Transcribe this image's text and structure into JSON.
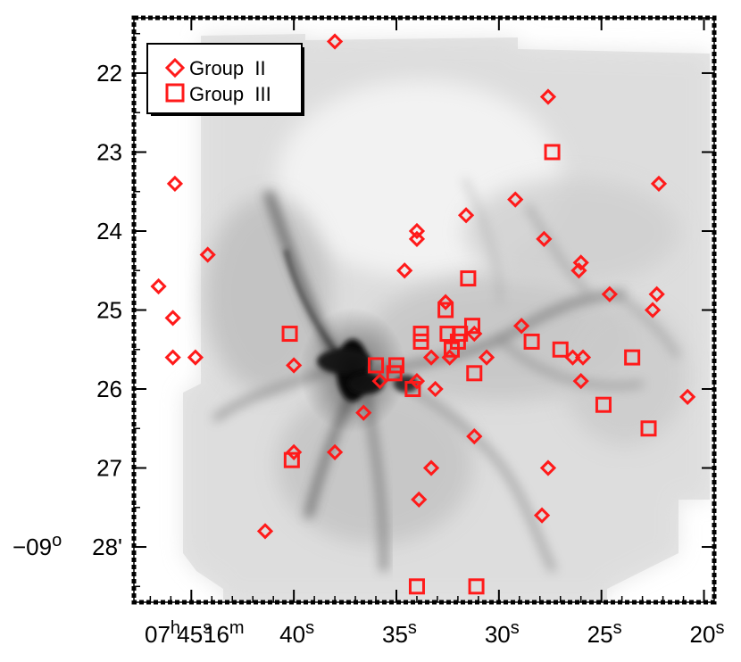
{
  "chart_data": {
    "type": "scatter",
    "background": "grayscale infrared nebula image with dark filamentary structures",
    "xlabel": "",
    "ylabel": "",
    "x_axis": {
      "unit": "seconds of right ascension",
      "range": [
        47.8,
        19.5
      ],
      "ticks": [
        {
          "value": 45,
          "label": "45",
          "sup": "s"
        },
        {
          "value": 40,
          "label": "40",
          "sup": "s"
        },
        {
          "value": 35,
          "label": "35",
          "sup": "s"
        },
        {
          "value": 30,
          "label": "30",
          "sup": "s"
        },
        {
          "value": 25,
          "label": "25",
          "sup": "s"
        },
        {
          "value": 20,
          "label": "20",
          "sup": "s"
        }
      ],
      "prefix": {
        "hours": "07",
        "hours_unit": "h",
        "minutes": "16",
        "minutes_unit": "m"
      }
    },
    "y_axis": {
      "unit": "arcminutes of declination (magnitude)",
      "range": [
        21.3,
        28.7
      ],
      "ticks": [
        {
          "value": 22,
          "label": "22"
        },
        {
          "value": 23,
          "label": "23"
        },
        {
          "value": 24,
          "label": "24"
        },
        {
          "value": 25,
          "label": "25"
        },
        {
          "value": 26,
          "label": "26"
        },
        {
          "value": 27,
          "label": "27"
        },
        {
          "value": 28,
          "label": "28'",
          "prefix": "−09",
          "prefix_sup": "o"
        }
      ]
    },
    "legend": {
      "position": "top-left",
      "entries": [
        {
          "name": "Group  II",
          "marker": "diamond"
        },
        {
          "name": "Group  III",
          "marker": "square"
        }
      ]
    },
    "series": [
      {
        "name": "Group  II",
        "marker": "diamond",
        "color": "#ff1a1a",
        "points": [
          [
            38.0,
            21.6
          ],
          [
            27.6,
            22.3
          ],
          [
            45.8,
            23.4
          ],
          [
            22.2,
            23.4
          ],
          [
            29.2,
            23.6
          ],
          [
            31.6,
            23.8
          ],
          [
            34.0,
            24.0
          ],
          [
            34.0,
            24.1
          ],
          [
            27.8,
            24.1
          ],
          [
            44.2,
            24.3
          ],
          [
            26.0,
            24.4
          ],
          [
            26.1,
            24.5
          ],
          [
            34.6,
            24.5
          ],
          [
            46.6,
            24.7
          ],
          [
            24.6,
            24.8
          ],
          [
            22.3,
            24.8
          ],
          [
            32.6,
            24.9
          ],
          [
            22.5,
            25.0
          ],
          [
            45.9,
            25.1
          ],
          [
            28.9,
            25.2
          ],
          [
            45.9,
            25.6
          ],
          [
            44.8,
            25.6
          ],
          [
            40.0,
            25.7
          ],
          [
            33.3,
            25.6
          ],
          [
            32.4,
            25.6
          ],
          [
            30.6,
            25.6
          ],
          [
            31.2,
            25.3
          ],
          [
            26.4,
            25.6
          ],
          [
            25.9,
            25.6
          ],
          [
            35.8,
            25.9
          ],
          [
            34.0,
            25.9
          ],
          [
            33.1,
            26.0
          ],
          [
            26.0,
            25.9
          ],
          [
            36.6,
            26.3
          ],
          [
            20.8,
            26.1
          ],
          [
            31.2,
            26.6
          ],
          [
            40.0,
            26.8
          ],
          [
            38.0,
            26.8
          ],
          [
            33.3,
            27.0
          ],
          [
            27.6,
            27.0
          ],
          [
            33.9,
            27.4
          ],
          [
            27.9,
            27.6
          ],
          [
            41.4,
            27.8
          ]
        ]
      },
      {
        "name": "Group  III",
        "marker": "square",
        "color": "#ff1a1a",
        "points": [
          [
            27.4,
            23.0
          ],
          [
            31.5,
            24.6
          ],
          [
            32.6,
            25.0
          ],
          [
            32.5,
            25.3
          ],
          [
            31.9,
            25.3
          ],
          [
            31.3,
            25.2
          ],
          [
            33.8,
            25.3
          ],
          [
            33.8,
            25.4
          ],
          [
            32.0,
            25.4
          ],
          [
            32.3,
            25.5
          ],
          [
            28.4,
            25.4
          ],
          [
            40.2,
            25.3
          ],
          [
            27.0,
            25.5
          ],
          [
            23.5,
            25.6
          ],
          [
            35.0,
            25.7
          ],
          [
            35.1,
            25.8
          ],
          [
            36.0,
            25.7
          ],
          [
            31.2,
            25.8
          ],
          [
            34.2,
            26.0
          ],
          [
            24.9,
            26.2
          ],
          [
            22.7,
            26.5
          ],
          [
            40.1,
            26.9
          ],
          [
            34.0,
            28.5
          ],
          [
            31.1,
            28.5
          ]
        ]
      }
    ]
  }
}
